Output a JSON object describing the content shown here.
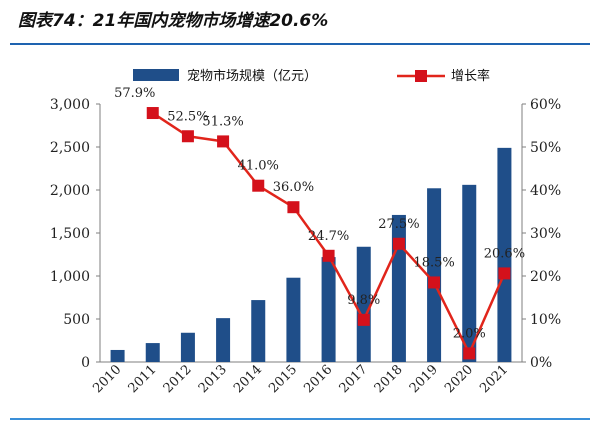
{
  "title": "图表74：21年国内宠物市场增速20.6%",
  "colors": {
    "bar": "#1f4e89",
    "line": "#e1251b",
    "marker": "#d4111b",
    "axis": "#7f7f7f",
    "accent": "#1e63b0"
  },
  "chart_data": {
    "type": "bar",
    "categories": [
      "2010",
      "2011",
      "2012",
      "2013",
      "2014",
      "2015",
      "2016",
      "2017",
      "2018",
      "2019",
      "2020",
      "2021"
    ],
    "series": [
      {
        "name": "宠物市场规模（亿元）",
        "type": "bar",
        "axis": "left",
        "values": [
          140,
          220,
          340,
          510,
          720,
          980,
          1220,
          1340,
          1710,
          2020,
          2060,
          2490
        ]
      },
      {
        "name": "增长率",
        "type": "line",
        "axis": "right",
        "values": [
          null,
          57.9,
          52.5,
          51.3,
          41.0,
          36.0,
          24.7,
          9.8,
          27.5,
          18.5,
          2.0,
          20.6
        ],
        "labels": [
          "",
          "57.9%",
          "52.5%",
          "51.3%",
          "41.0%",
          "36.0%",
          "24.7%",
          "9.8%",
          "27.5%",
          "18.5%",
          "2.0%",
          "20.6%"
        ]
      }
    ],
    "y_left": {
      "ylim": [
        0,
        3000
      ],
      "ticks": [
        "0",
        "500",
        "1,000",
        "1,500",
        "2,000",
        "2,500",
        "3,000"
      ]
    },
    "y_right": {
      "ylim": [
        0,
        60
      ],
      "ticks": [
        "0%",
        "10%",
        "20%",
        "30%",
        "40%",
        "50%",
        "60%"
      ]
    },
    "legend_position": "top",
    "grid": false
  }
}
